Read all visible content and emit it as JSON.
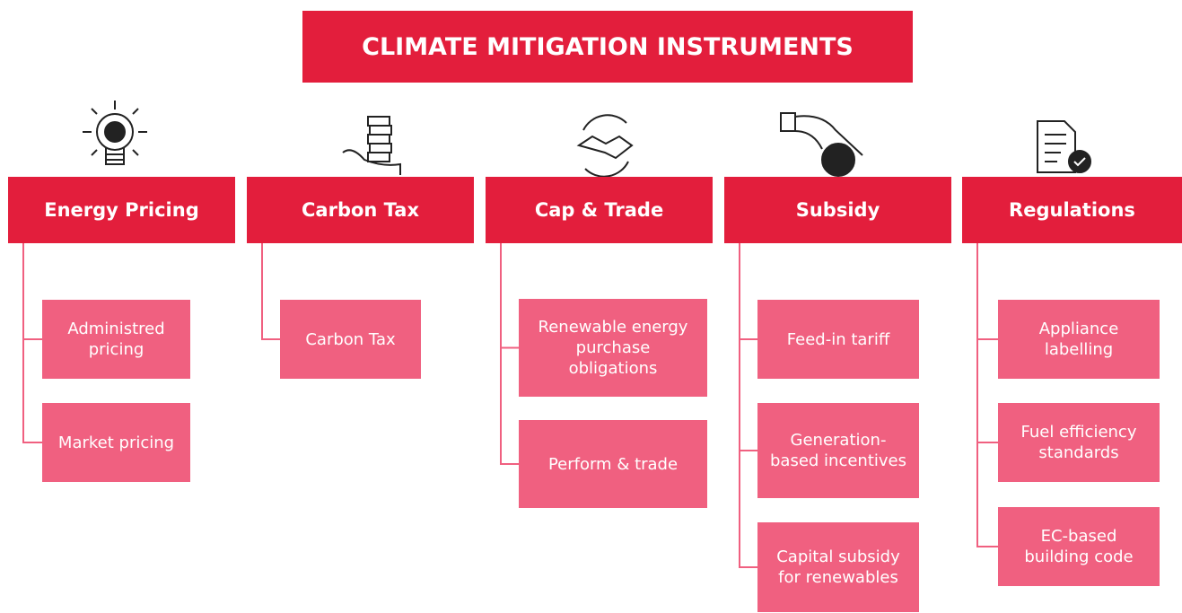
{
  "title": "CLIMATE MITIGATION INSTRUMENTS",
  "columns": [
    {
      "name": "Energy Pricing",
      "items": [
        "Administred pricing",
        "Market pricing"
      ]
    },
    {
      "name": "Carbon Tax",
      "items": [
        "Carbon Tax"
      ]
    },
    {
      "name": "Cap & Trade",
      "items": [
        "Renewable energy purchase obligations",
        "Perform & trade"
      ]
    },
    {
      "name": "Subsidy",
      "items": [
        "Feed-in tariff",
        "Generation-based incentives",
        "Capital subsidy for renewables"
      ]
    },
    {
      "name": "Regulations",
      "items": [
        "Appliance labelling",
        "Fuel efficiency standards",
        "EC-based building code"
      ]
    }
  ]
}
